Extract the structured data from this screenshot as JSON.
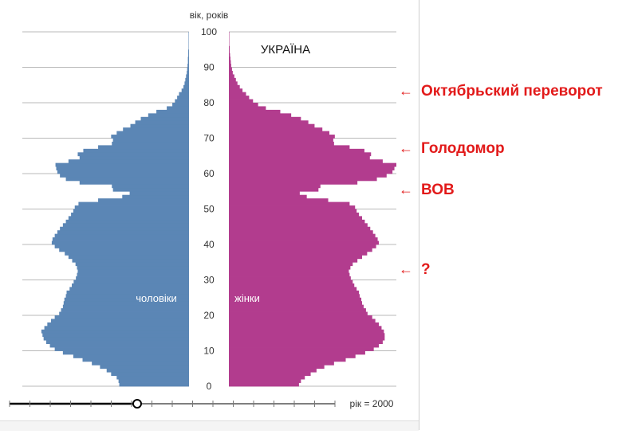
{
  "chart_data": {
    "type": "population-pyramid",
    "title": "УКРАЇНА",
    "ylabel": "вік, років",
    "ylim": [
      0,
      100
    ],
    "yticks": [
      0,
      10,
      20,
      30,
      40,
      50,
      60,
      70,
      80,
      90,
      100
    ],
    "series": [
      {
        "name": "чоловіки",
        "side": "left",
        "color": "#5b86b5"
      },
      {
        "name": "жінки",
        "side": "right",
        "color": "#b23c8e"
      }
    ],
    "ages": [
      0,
      1,
      2,
      3,
      4,
      5,
      6,
      7,
      8,
      9,
      10,
      11,
      12,
      13,
      14,
      15,
      16,
      17,
      18,
      19,
      20,
      21,
      22,
      23,
      24,
      25,
      26,
      27,
      28,
      29,
      30,
      31,
      32,
      33,
      34,
      35,
      36,
      37,
      38,
      39,
      40,
      41,
      42,
      43,
      44,
      45,
      46,
      47,
      48,
      49,
      50,
      51,
      52,
      53,
      54,
      55,
      56,
      57,
      58,
      59,
      60,
      61,
      62,
      63,
      64,
      65,
      66,
      67,
      68,
      69,
      70,
      71,
      72,
      73,
      74,
      75,
      76,
      77,
      78,
      79,
      80,
      81,
      82,
      83,
      84,
      85,
      86,
      87,
      88,
      89,
      90,
      91,
      92,
      93,
      94,
      95,
      96,
      97,
      98,
      99,
      100
    ],
    "male": [
      188,
      190,
      195,
      210,
      222,
      240,
      262,
      287,
      312,
      340,
      362,
      375,
      385,
      392,
      395,
      398,
      390,
      382,
      372,
      362,
      350,
      345,
      340,
      338,
      336,
      332,
      330,
      322,
      316,
      311,
      305,
      302,
      300,
      302,
      306,
      315,
      325,
      335,
      350,
      362,
      370,
      368,
      362,
      355,
      348,
      340,
      332,
      325,
      318,
      312,
      308,
      298,
      245,
      180,
      160,
      205,
      208,
      295,
      332,
      348,
      355,
      358,
      360,
      325,
      295,
      300,
      285,
      245,
      208,
      205,
      210,
      195,
      178,
      158,
      145,
      130,
      110,
      88,
      60,
      45,
      38,
      32,
      27,
      20,
      15,
      12,
      10,
      8,
      6,
      5,
      4,
      3,
      3,
      2,
      2,
      1,
      1,
      1,
      1,
      1,
      0
    ],
    "female": [
      180,
      185,
      195,
      210,
      225,
      245,
      270,
      300,
      325,
      350,
      372,
      385,
      395,
      400,
      400,
      398,
      392,
      385,
      376,
      368,
      356,
      352,
      346,
      342,
      340,
      336,
      334,
      328,
      322,
      318,
      313,
      310,
      308,
      312,
      318,
      330,
      342,
      355,
      368,
      378,
      385,
      382,
      376,
      370,
      363,
      356,
      349,
      342,
      334,
      328,
      324,
      310,
      255,
      200,
      182,
      230,
      235,
      330,
      380,
      405,
      420,
      425,
      430,
      395,
      362,
      365,
      348,
      310,
      270,
      268,
      272,
      258,
      240,
      220,
      204,
      185,
      160,
      132,
      95,
      75,
      62,
      52,
      44,
      35,
      28,
      22,
      18,
      14,
      10,
      8,
      6,
      5,
      4,
      3,
      2,
      2,
      1,
      1,
      1,
      1,
      0
    ],
    "maxValue": 430
  },
  "labels": {
    "title": "УКРАЇНА",
    "age_axis": "вік, років",
    "male": "чоловіки",
    "female": "жінки",
    "year": "рік = 2000"
  },
  "slider": {
    "year": 2000,
    "position_fraction": 0.5
  },
  "annotations": [
    {
      "text": "Октябрьский переворот",
      "age": 83
    },
    {
      "text": "Голодомор",
      "age": 67
    },
    {
      "text": "ВОВ",
      "age": 56
    },
    {
      "text": "?",
      "age": 32
    }
  ],
  "colors": {
    "male": "#5b86b5",
    "female": "#b23c8e",
    "annotation": "#e21a1a"
  }
}
